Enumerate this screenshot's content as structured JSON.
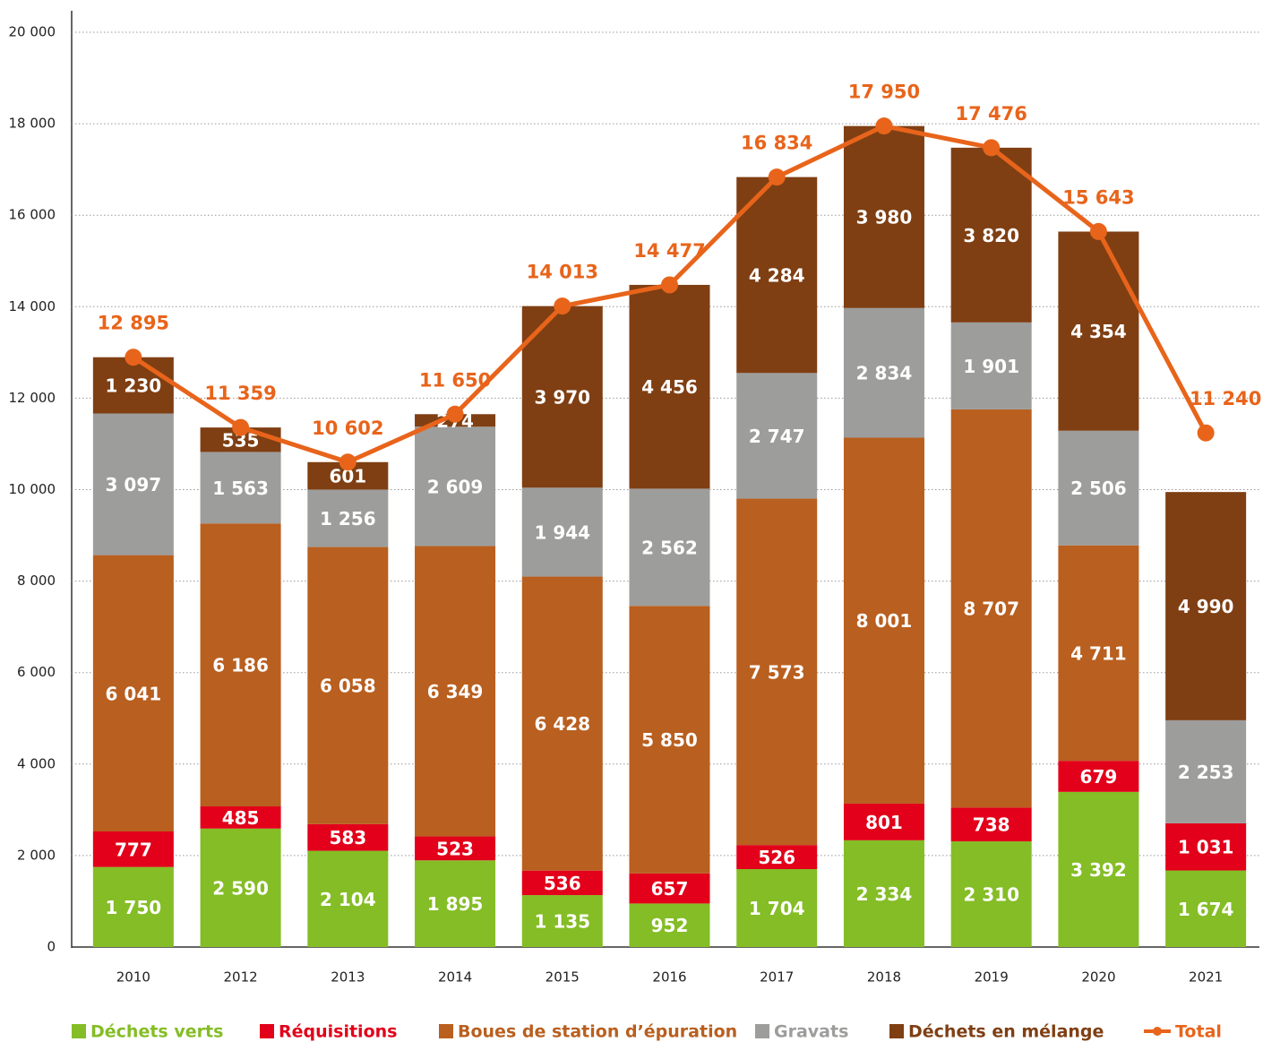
{
  "chart_data": {
    "type": "bar",
    "stacked": true,
    "categories": [
      "2010",
      "2012",
      "2013",
      "2014",
      "2015",
      "2016",
      "2017",
      "2018",
      "2019",
      "2020",
      "2021"
    ],
    "series": [
      {
        "name": "Déchets verts",
        "color": "#84bd25",
        "values": [
          1750,
          2590,
          2104,
          1895,
          1135,
          952,
          1704,
          2334,
          2310,
          3392,
          1674
        ],
        "value_labels": [
          "1 750",
          "2 590",
          "2 104",
          "1 895",
          "1 135",
          "952",
          "1 704",
          "2 334",
          "2 310",
          "3 392",
          "1 674"
        ]
      },
      {
        "name": "Réquisitions",
        "color": "#e2001a",
        "values": [
          777,
          485,
          583,
          523,
          536,
          657,
          526,
          801,
          738,
          679,
          1031
        ],
        "value_labels": [
          "777",
          "485",
          "583",
          "523",
          "536",
          "657",
          "526",
          "801",
          "738",
          "679",
          "1 031"
        ]
      },
      {
        "name": "Boues de station d’épuration",
        "color": "#b95f1f",
        "values": [
          6041,
          6186,
          6058,
          6349,
          6428,
          5850,
          7573,
          8001,
          8707,
          4711,
          null
        ],
        "value_labels": [
          "6 041",
          "6 186",
          "6 058",
          "6 349",
          "6 428",
          "5 850",
          "7 573",
          "8 001",
          "8 707",
          "4 711",
          null
        ]
      },
      {
        "name": "Gravats",
        "color": "#9d9d9c",
        "values": [
          3097,
          1563,
          1256,
          2609,
          1944,
          2562,
          2747,
          2834,
          1901,
          2506,
          2253
        ],
        "value_labels": [
          "3 097",
          "1 563",
          "1 256",
          "2 609",
          "1 944",
          "2 562",
          "2 747",
          "2 834",
          "1 901",
          "2 506",
          "2 253"
        ]
      },
      {
        "name": "Déchets en mélange",
        "color": "#7f3f13",
        "values": [
          1230,
          535,
          601,
          274,
          3970,
          4456,
          4284,
          3980,
          3820,
          4354,
          4990
        ],
        "value_labels": [
          "1 230",
          "535",
          "601",
          "274",
          "3 970",
          "4 456",
          "4 284",
          "3 980",
          "3 820",
          "4 354",
          "4 990"
        ]
      },
      {
        "name": "Total",
        "type": "line",
        "color": "#e8641b",
        "values": [
          12895,
          11359,
          10602,
          11650,
          14013,
          14477,
          16834,
          17950,
          17476,
          15643,
          11240
        ],
        "value_labels": [
          "12 895",
          "11 359",
          "10 602",
          "11 650",
          "14 013",
          "14 477",
          "16 834",
          "17 950",
          "17 476",
          "15 643",
          "11 240"
        ]
      }
    ],
    "ylim": [
      0,
      20000
    ],
    "yticks": [
      0,
      {
        "value": 2000,
        "label": "2 000"
      },
      {
        "value": 4000,
        "label": "4 000"
      },
      {
        "value": 6000,
        "label": "6 000"
      },
      {
        "value": 8000,
        "label": "8 000"
      },
      {
        "value": 10000,
        "label": "10 000"
      },
      {
        "value": 12000,
        "label": "12 000"
      },
      {
        "value": 14000,
        "label": "14 000"
      },
      {
        "value": 16000,
        "label": "16 000"
      },
      {
        "value": 18000,
        "label": "18 000"
      },
      {
        "value": 20000,
        "label": "20 000"
      }
    ],
    "grid": true,
    "legend": "bottom"
  }
}
